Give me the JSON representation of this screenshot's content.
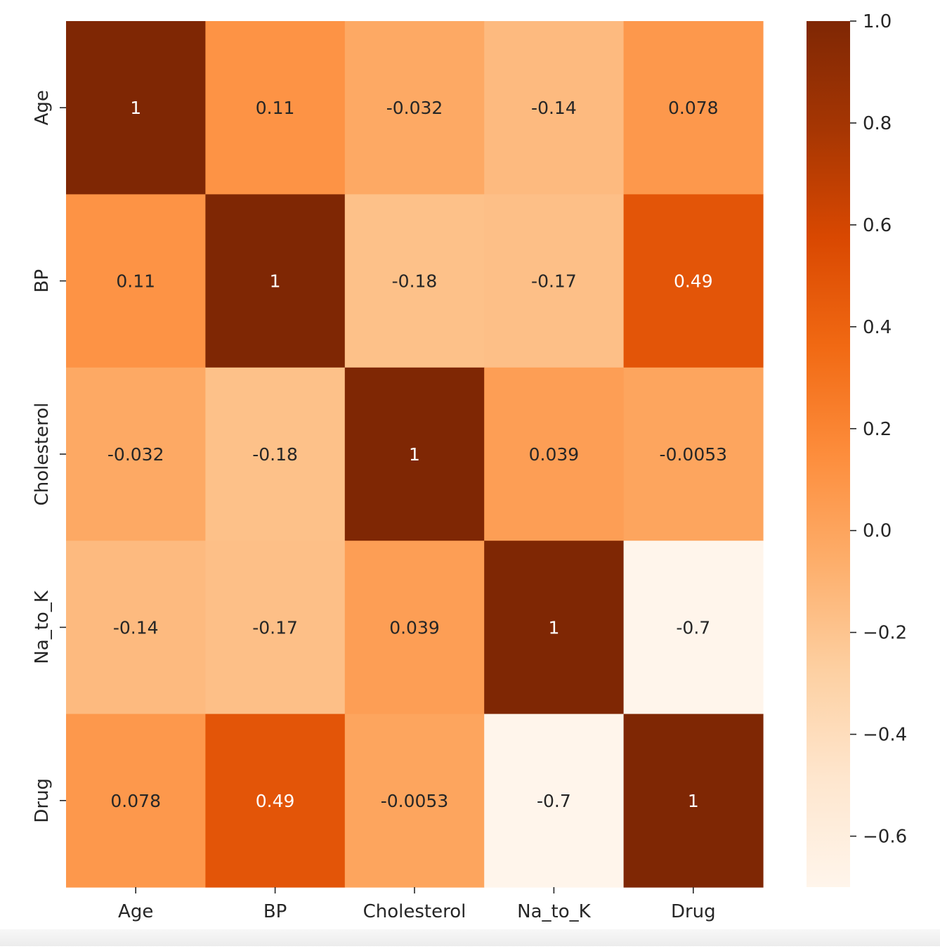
{
  "chart_data": {
    "type": "heatmap",
    "title": "",
    "xlabel": "",
    "ylabel": "",
    "x_labels": [
      "Age",
      "BP",
      "Cholesterol",
      "Na_to_K",
      "Drug"
    ],
    "y_labels": [
      "Age",
      "BP",
      "Cholesterol",
      "Na_to_K",
      "Drug"
    ],
    "matrix": [
      [
        1,
        0.11,
        -0.032,
        -0.14,
        0.078
      ],
      [
        0.11,
        1,
        -0.18,
        -0.17,
        0.49
      ],
      [
        -0.032,
        -0.18,
        1,
        0.039,
        -0.0053
      ],
      [
        -0.14,
        -0.17,
        0.039,
        1,
        -0.7
      ],
      [
        0.078,
        0.49,
        -0.0053,
        -0.7,
        1
      ]
    ],
    "annotations": [
      [
        "1",
        "0.11",
        "-0.032",
        "-0.14",
        "0.078"
      ],
      [
        "0.11",
        "1",
        "-0.18",
        "-0.17",
        "0.49"
      ],
      [
        "-0.032",
        "-0.18",
        "1",
        "0.039",
        "-0.0053"
      ],
      [
        "-0.14",
        "-0.17",
        "0.039",
        "1",
        "-0.7"
      ],
      [
        "0.078",
        "0.49",
        "-0.0053",
        "-0.7",
        "1"
      ]
    ],
    "colorbar": {
      "range": [
        -0.7,
        1.0
      ],
      "ticks": [
        1.0,
        0.8,
        0.6,
        0.4,
        0.2,
        0.0,
        -0.2,
        -0.4,
        -0.6
      ],
      "tick_labels": [
        "1.0",
        "0.8",
        "0.6",
        "0.4",
        "0.2",
        "0.0",
        "−0.2",
        "−0.4",
        "−0.6"
      ]
    },
    "colormap": {
      "name": "Oranges",
      "stops": [
        "#fff5eb",
        "#fee6ce",
        "#fdd0a2",
        "#fdae6b",
        "#fd8d3c",
        "#f16913",
        "#d94801",
        "#a63603",
        "#7f2704"
      ]
    }
  }
}
